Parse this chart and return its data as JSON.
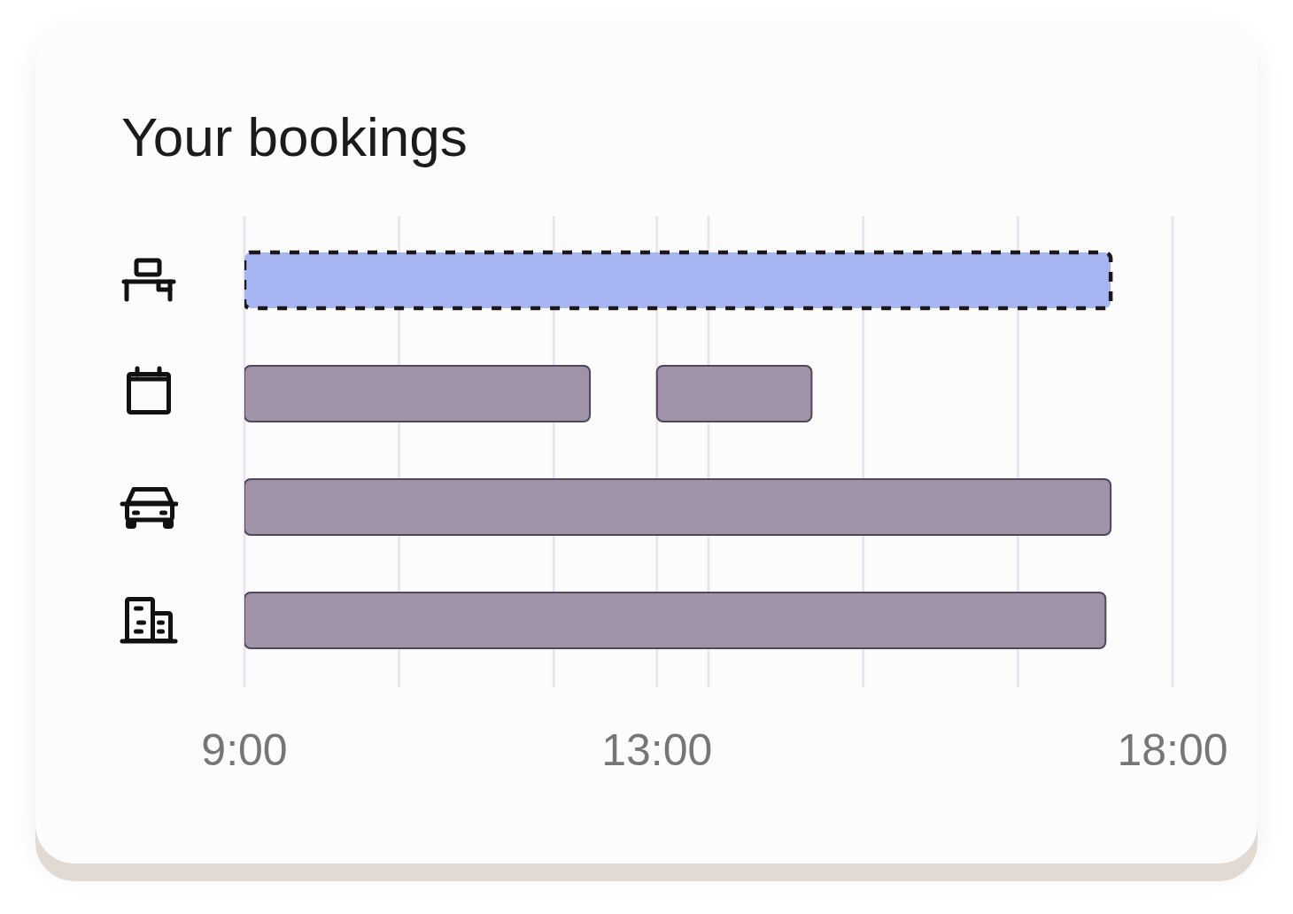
{
  "chart_data": {
    "type": "bar",
    "orientation": "horizontal",
    "title": "Your bookings",
    "categories": [
      null,
      null,
      null,
      null
    ],
    "series": [
      {
        "color": "#a093a7",
        "colors": [
          "#a7b6f2",
          "#a093a7",
          "#a093a7",
          "#a093a7"
        ],
        "values": [
          8.4,
          3.35,
          8.4,
          8.35
        ],
        "base": [
          9,
          9,
          9,
          9
        ]
      },
      {
        "color": "#a093a7",
        "values": [
          null,
          1.5,
          null,
          null
        ],
        "base": [
          null,
          13,
          null,
          null
        ]
      }
    ],
    "xlim": [
      9,
      18
    ],
    "xticks": [
      {
        "value": 9,
        "label": "9:00"
      },
      {
        "value": 10.5,
        "label": null
      },
      {
        "value": 12,
        "label": null
      },
      {
        "value": 13,
        "label": "13:00"
      },
      {
        "value": 13.5,
        "label": null
      },
      {
        "value": 15,
        "label": null
      },
      {
        "value": 16.5,
        "label": null
      },
      {
        "value": 18,
        "label": "18:00"
      }
    ],
    "grid": "x"
  }
}
